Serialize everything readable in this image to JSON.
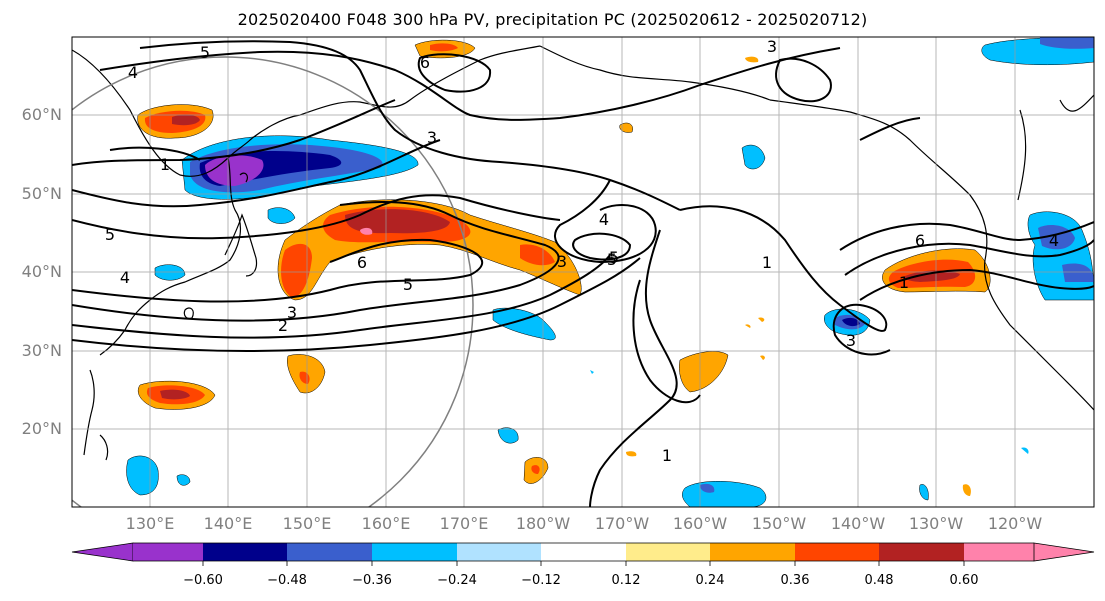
{
  "title": "2025020400 F048 300 hPa PV, precipitation PC (2025020612 - 2025020712)",
  "map": {
    "lat_labels": [
      "60°N",
      "50°N",
      "40°N",
      "30°N",
      "20°N"
    ],
    "lon_labels": [
      "130°E",
      "140°E",
      "150°E",
      "160°E",
      "170°E",
      "180°W",
      "170°W",
      "160°W",
      "150°W",
      "140°W",
      "130°W",
      "120°W"
    ],
    "contour_labels": [
      "5",
      "4",
      "6",
      "3",
      "3",
      "1",
      "5",
      "2",
      "3",
      "6",
      "5",
      "4",
      "5",
      "3",
      "1",
      "3",
      "6",
      "4",
      "1",
      "1",
      "4",
      "5"
    ]
  },
  "colorbar": {
    "colors": [
      "#9932cc",
      "#00008b",
      "#3a5fcd",
      "#00bfff",
      "#b0e2ff",
      "#ffffff",
      "#ffec8b",
      "#ffa500",
      "#ff4500",
      "#b22222",
      "#ff82ab"
    ],
    "tick_labels": [
      "−0.60",
      "−0.48",
      "−0.36",
      "−0.24",
      "−0.12",
      "0.12",
      "0.24",
      "0.36",
      "0.48",
      "0.60"
    ]
  }
}
